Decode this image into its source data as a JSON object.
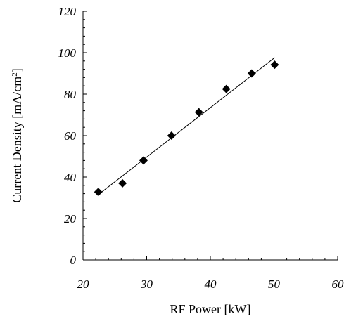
{
  "chart_data": {
    "type": "scatter",
    "title": "",
    "xlabel": "RF Power [kW]",
    "ylabel_main": "Current Density [mA/cm",
    "ylabel_sup": "2",
    "ylabel_close": "]",
    "xlim": [
      20,
      60
    ],
    "ylim": [
      0,
      120
    ],
    "x_ticks": [
      20,
      30,
      40,
      50,
      60
    ],
    "y_ticks": [
      0,
      20,
      40,
      60,
      80,
      100,
      120
    ],
    "x_minor_step": 2,
    "y_minor_step": 4,
    "grid": false,
    "legend": "none",
    "series": [
      {
        "marker": "diamond",
        "color": "#000000",
        "x": [
          22.4,
          26.2,
          29.5,
          33.9,
          38.2,
          42.5,
          46.5,
          50.1
        ],
        "y": [
          32.8,
          37.0,
          48.0,
          60.0,
          71.3,
          82.5,
          90.0,
          94.2
        ]
      }
    ],
    "trendline": {
      "type": "linear",
      "x": [
        22.4,
        50.1
      ],
      "y": [
        31.5,
        97.6
      ]
    }
  }
}
